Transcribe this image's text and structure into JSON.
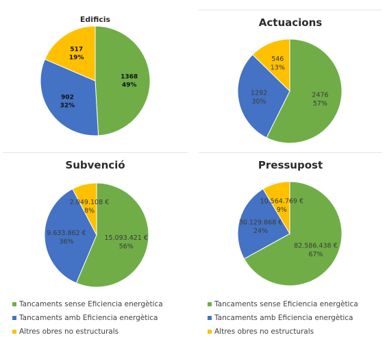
{
  "colors": {
    "green": "#70AD47",
    "blue": "#4472C4",
    "yellow": "#FFC000"
  },
  "chart_data": [
    {
      "type": "pie",
      "title": "Edificis",
      "categories": [
        "Tancaments sense Eficiencia energètica",
        "Tancaments amb Eficiencia energètica",
        "Altres obres no estructurals"
      ],
      "values": [
        1368,
        902,
        517
      ],
      "value_labels": [
        "1368",
        "902",
        "517"
      ],
      "percent_labels": [
        "49%",
        "32%",
        "19%"
      ]
    },
    {
      "type": "pie",
      "title": "Actuacions",
      "categories": [
        "Tancaments sense Eficiencia energètica",
        "Tancaments amb Eficiencia energètica",
        "Altres obres no estructurals"
      ],
      "values": [
        2476,
        1292,
        546
      ],
      "value_labels": [
        "2476",
        "1292",
        "546"
      ],
      "percent_labels": [
        "57%",
        "30%",
        "13%"
      ]
    },
    {
      "type": "pie",
      "title": "Subvenció",
      "categories": [
        "Tancaments sense Eficiencia energètica",
        "Tancaments amb Eficiencia energètica",
        "Altres obres no estructurals"
      ],
      "values": [
        15093421,
        9633862,
        2049108
      ],
      "value_labels": [
        "15.093.421 €",
        "9.633.862 €",
        "2.049.108 €"
      ],
      "percent_labels": [
        "56%",
        "36%",
        "8%"
      ]
    },
    {
      "type": "pie",
      "title": "Pressupost",
      "categories": [
        "Tancaments sense Eficiencia energètica",
        "Tancaments amb Eficiencia energètica",
        "Altres obres no estructurals"
      ],
      "values": [
        82586438,
        30129868,
        10564769
      ],
      "value_labels": [
        "82.586.438 €",
        "30.129.868 €",
        "10.564.769 €"
      ],
      "percent_labels": [
        "67%",
        "24%",
        "9%"
      ]
    }
  ],
  "legends": [
    [
      "Tancaments sense Eficiencia energètica",
      "Tancaments amb Eficiencia energètica",
      "Altres obres no estructurals"
    ],
    [
      "Tancaments sense Eficiencia energètica",
      "Tancaments amb Eficiencia energètica",
      "Altres obres no estructurals"
    ]
  ]
}
